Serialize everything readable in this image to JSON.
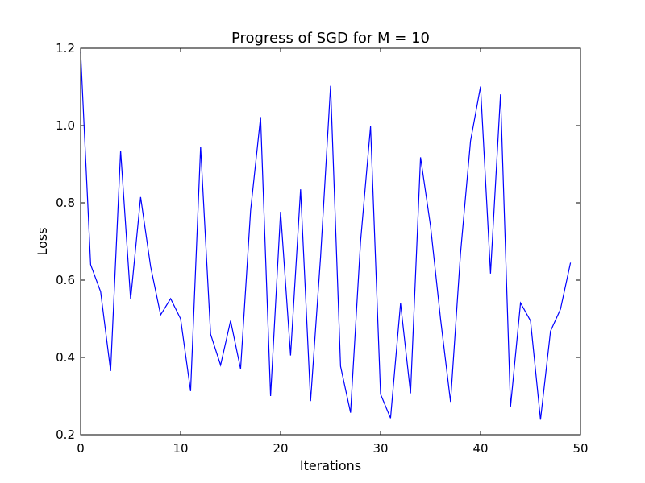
{
  "chart_data": {
    "type": "line",
    "title": "Progress of SGD for M = 10",
    "xlabel": "Iterations",
    "ylabel": "Loss",
    "xlim": [
      0,
      50
    ],
    "ylim": [
      0.2,
      1.2
    ],
    "xticks": [
      0,
      10,
      20,
      30,
      40,
      50
    ],
    "yticks": [
      0.2,
      0.4,
      0.6,
      0.8,
      1.0,
      1.2
    ],
    "xtick_labels": [
      "0",
      "10",
      "20",
      "30",
      "40",
      "50"
    ],
    "ytick_labels": [
      "0.2",
      "0.4",
      "0.6",
      "0.8",
      "1.0",
      "1.2"
    ],
    "grid": false,
    "legend": "none",
    "colors": {
      "line": "#0000ff",
      "axes": "#000000",
      "background": "#ffffff"
    },
    "series": [
      {
        "x": [
          0,
          1,
          2,
          3,
          4,
          5,
          6,
          7,
          8,
          9,
          10,
          11,
          12,
          13,
          14,
          15,
          16,
          17,
          18,
          19,
          20,
          21,
          22,
          23,
          24,
          25,
          26,
          27,
          28,
          29,
          30,
          31,
          32,
          33,
          34,
          35,
          36,
          37,
          38,
          39,
          40,
          41,
          42,
          43,
          44,
          45,
          46,
          47,
          48,
          49
        ],
        "values": [
          1.19,
          0.64,
          0.57,
          0.365,
          0.935,
          0.55,
          0.815,
          0.635,
          0.51,
          0.552,
          0.5,
          0.313,
          0.945,
          0.46,
          0.38,
          0.495,
          0.37,
          0.78,
          1.022,
          0.3,
          0.777,
          0.405,
          0.835,
          0.287,
          0.66,
          1.103,
          0.377,
          0.257,
          0.7,
          0.998,
          0.305,
          0.243,
          0.54,
          0.307,
          0.918,
          0.74,
          0.5,
          0.285,
          0.67,
          0.96,
          1.101,
          0.617,
          1.081,
          0.272,
          0.541,
          0.495,
          0.239,
          0.468,
          0.525,
          0.645
        ]
      }
    ]
  }
}
